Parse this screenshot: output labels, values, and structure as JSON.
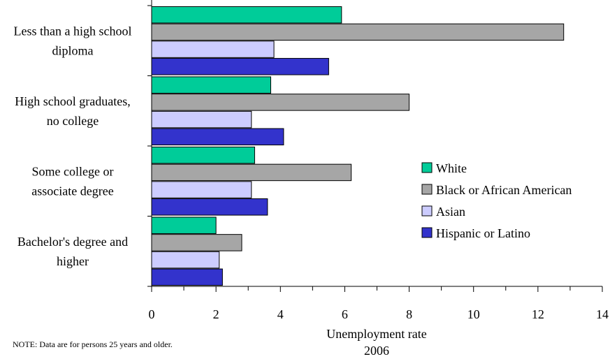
{
  "chart_data": {
    "type": "bar",
    "orientation": "horizontal",
    "categories": [
      [
        "Less than a high school",
        "diploma"
      ],
      [
        "High school graduates,",
        "no college"
      ],
      [
        "Some college or",
        "associate degree"
      ],
      [
        "Bachelor's degree and",
        "higher"
      ]
    ],
    "series": [
      {
        "name": "White",
        "color": "#00CC99",
        "values": [
          5.9,
          3.7,
          3.2,
          2.0
        ]
      },
      {
        "name": "Black or African American",
        "color": "#A6A6A6",
        "values": [
          12.8,
          8.0,
          6.2,
          2.8
        ]
      },
      {
        "name": "Asian",
        "color": "#CCCCFF",
        "values": [
          3.8,
          3.1,
          3.1,
          2.1
        ]
      },
      {
        "name": "Hispanic or Latino",
        "color": "#3333CC",
        "values": [
          5.5,
          4.1,
          3.6,
          2.2
        ]
      }
    ],
    "xlabel": [
      "Unemployment rate",
      "2006"
    ],
    "xlim": [
      0,
      14
    ],
    "xticks": [
      0,
      2,
      4,
      6,
      8,
      10,
      12,
      14
    ],
    "legend_position": "right",
    "grid": false
  },
  "note": "NOTE:  Data are for persons 25 years and older."
}
